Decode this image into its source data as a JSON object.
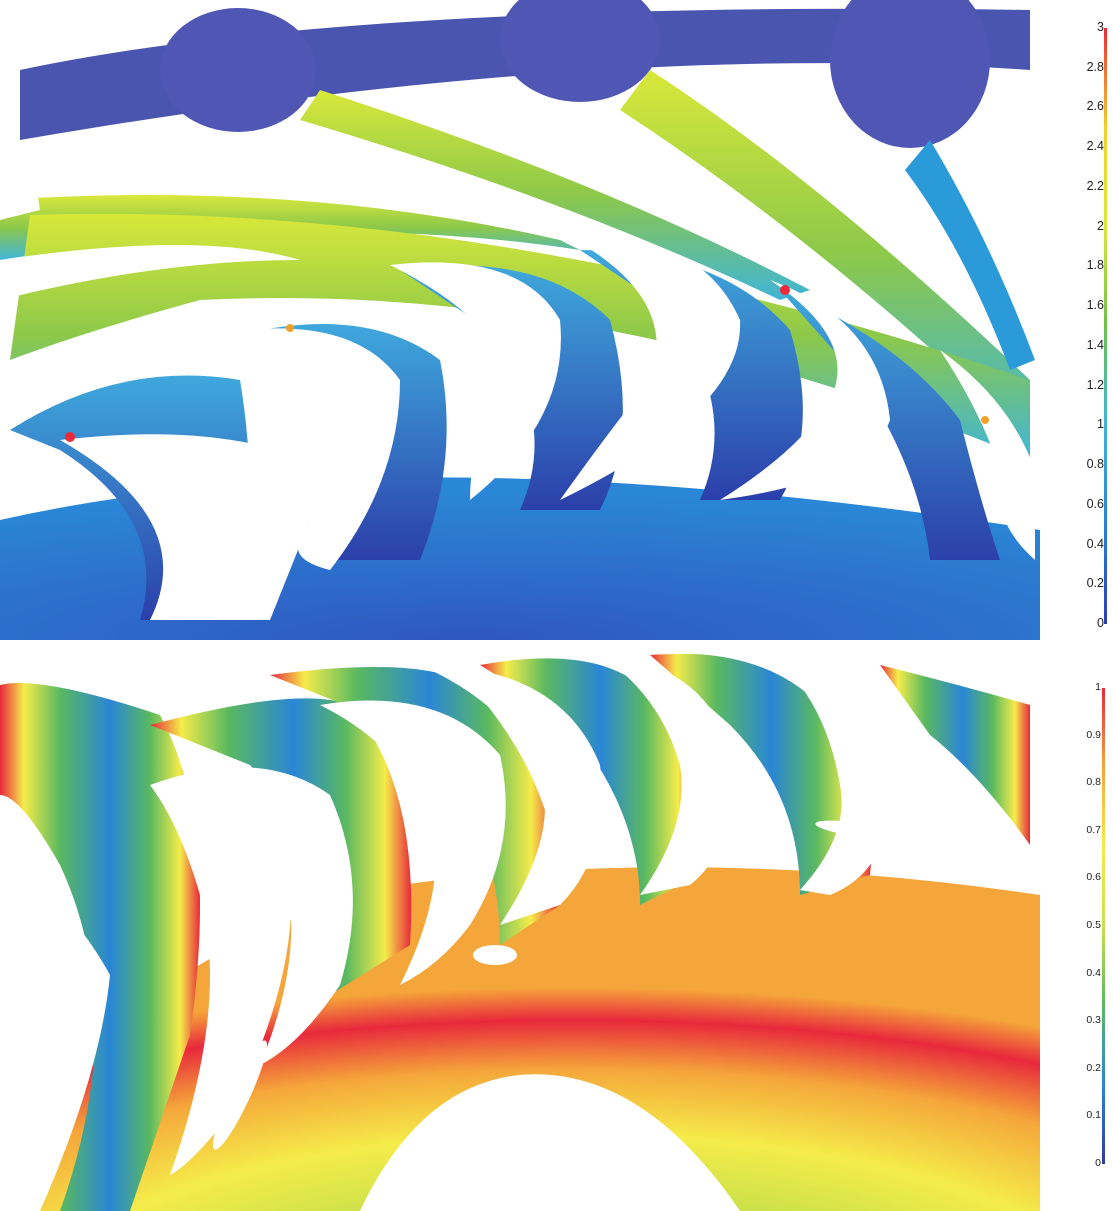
{
  "figure": {
    "top_panel": {
      "colorbar": {
        "ticks": [
          "3",
          "2.8",
          "2.6",
          "2.4",
          "2.2",
          "2",
          "1.8",
          "1.6",
          "1.4",
          "1.2",
          "1",
          "0.8",
          "0.6",
          "0.4",
          "0.2",
          "0"
        ],
        "range": [
          0,
          3
        ],
        "colors": [
          "#2b3faa",
          "#2a80d6",
          "#3fb5d8",
          "#6cc04a",
          "#d9e83a",
          "#f2d12a",
          "#ec2a3a"
        ]
      },
      "background_color": "#2a80d6"
    },
    "bottom_panel": {
      "colorbar": {
        "ticks": [
          "1",
          "0.9",
          "0.8",
          "0.7",
          "0.6",
          "0.5",
          "0.4",
          "0.3",
          "0.2",
          "0.1",
          "0"
        ],
        "range": [
          0,
          1
        ],
        "colors": [
          "#34399e",
          "#2a86d6",
          "#5ab960",
          "#c8e04a",
          "#f5ec4a",
          "#f5a63a",
          "#e8283c"
        ]
      }
    }
  }
}
